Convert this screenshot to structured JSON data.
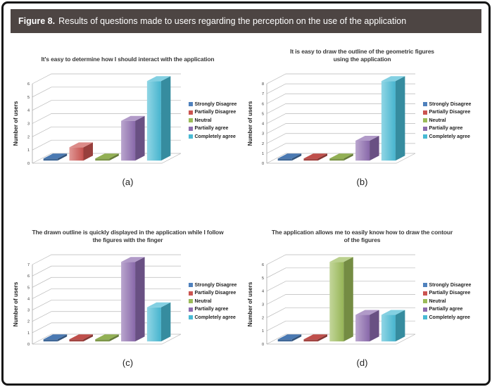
{
  "header": {
    "prefix": "Figure 8.",
    "text": "Results of questions made to users regarding the perception on the use of the application"
  },
  "legend": {
    "labels": [
      "Strongly Disagree",
      "Partially Disagree",
      "Neutral",
      "Partially agree",
      "Completely agree"
    ],
    "position": "right"
  },
  "series_colors": [
    "#4F81BD",
    "#CB5450",
    "#9BBB59",
    "#8C6BAE",
    "#48BAD4"
  ],
  "chart_data": [
    {
      "type": "bar",
      "style": "3d-column",
      "id": "a",
      "caption": "(a)",
      "title": "It's easy to determine how I should interact with the application",
      "ylabel": "Number of users",
      "categories": [
        "Strongly Disagree",
        "Partially Disagree",
        "Neutral",
        "Partially agree",
        "Completely agree"
      ],
      "values": [
        0,
        1,
        0,
        3,
        6
      ],
      "ylim": [
        0,
        6
      ],
      "tick_step": 1,
      "grid": true,
      "legend_position": "right"
    },
    {
      "type": "bar",
      "style": "3d-column",
      "id": "b",
      "caption": "(b)",
      "title": "It is easy to draw the outline of the geometric figures\nusing the application",
      "ylabel": "Number of users",
      "categories": [
        "Strongly Disagree",
        "Partially Disagree",
        "Neutral",
        "Partially agree",
        "Completely agree"
      ],
      "values": [
        0,
        0,
        0,
        2,
        8
      ],
      "ylim": [
        0,
        8
      ],
      "tick_step": 1,
      "grid": true,
      "legend_position": "right"
    },
    {
      "type": "bar",
      "style": "3d-column",
      "id": "c",
      "caption": "(c)",
      "title": "The drawn outline is quickly displayed in the application while I follow\nthe figures with the finger",
      "ylabel": "Number of users",
      "categories": [
        "Strongly Disagree",
        "Partially Disagree",
        "Neutral",
        "Partially agree",
        "Completely agree"
      ],
      "values": [
        0,
        0,
        0,
        7,
        3
      ],
      "ylim": [
        0,
        7
      ],
      "tick_step": 1,
      "grid": true,
      "legend_position": "right"
    },
    {
      "type": "bar",
      "style": "3d-column",
      "id": "d",
      "caption": "(d)",
      "title": "The application allows me to easily know how to draw the contour\nof the figures",
      "ylabel": "Number of users",
      "categories": [
        "Strongly Disagree",
        "Partially Disagree",
        "Neutral",
        "Partially agree",
        "Completely agree"
      ],
      "values": [
        0,
        0,
        6,
        2,
        2
      ],
      "ylim": [
        0,
        6
      ],
      "tick_step": 1,
      "grid": true,
      "legend_position": "right"
    }
  ]
}
